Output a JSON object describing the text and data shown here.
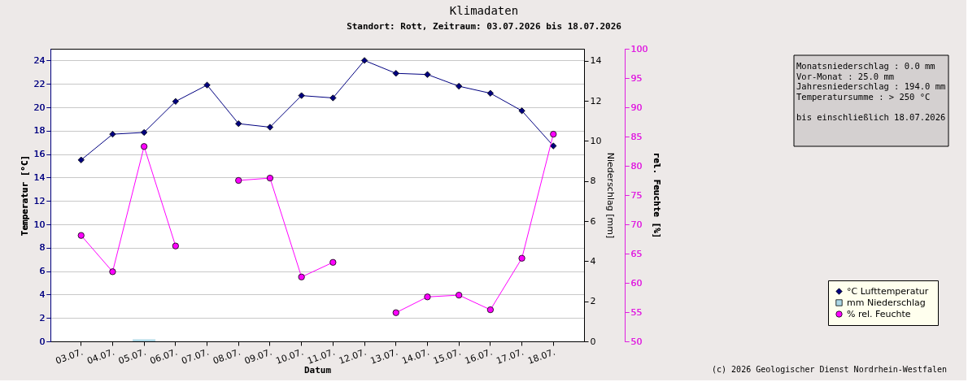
{
  "chart_data": {
    "type": "line",
    "title": "Klimadaten",
    "subtitle": "Standort: Rott, Zeitraum: 03.07.2026 bis 18.07.2026",
    "xlabel": "Datum",
    "ylabel": "Temperatur [°C]",
    "y2label": "Niederschlag [mm]",
    "y3label": "rel. Feuchte [%]",
    "categories": [
      "03.07.",
      "04.07.",
      "05.07.",
      "06.07.",
      "07.07.",
      "08.07.",
      "09.07.",
      "10.07.",
      "11.07.",
      "12.07.",
      "13.07.",
      "14.07.",
      "15.07.",
      "16.07.",
      "17.07.",
      "18.07."
    ],
    "series": [
      {
        "name": "°C  Lufttemperatur",
        "color": "#000080",
        "marker": "diamond",
        "values": [
          15.5,
          17.7,
          17.85,
          20.5,
          21.9,
          18.6,
          18.3,
          21.0,
          20.8,
          24.0,
          22.9,
          22.8,
          21.8,
          21.2,
          19.7,
          16.7
        ]
      },
      {
        "name": "mm  Niederschlag",
        "type": "bar",
        "axis": "y2",
        "color": "#add8e6",
        "marker": "square",
        "values": [
          0,
          0,
          0.1,
          0,
          0,
          0,
          0,
          0,
          0,
          0,
          0,
          0,
          0,
          0,
          0,
          0
        ]
      },
      {
        "name": "%  rel. Feuchte",
        "axis": "y3",
        "color": "#ff00ff",
        "marker": "circle",
        "values": [
          68.1,
          61.9,
          83.3,
          66.3,
          null,
          77.5,
          77.9,
          61.0,
          63.5,
          null,
          54.9,
          57.6,
          57.9,
          55.4,
          64.2,
          85.4
        ]
      }
    ],
    "ylim": [
      0,
      25
    ],
    "yticks": [
      0,
      2,
      4,
      6,
      8,
      10,
      12,
      14,
      16,
      18,
      20,
      22,
      24
    ],
    "y2lim": [
      0,
      14.6
    ],
    "y2ticks": [
      0,
      2,
      4,
      6,
      8,
      10,
      12,
      14
    ],
    "y3lim": [
      50,
      100
    ],
    "y3ticks": [
      50,
      55,
      60,
      65,
      70,
      75,
      80,
      85,
      90,
      95,
      100
    ],
    "grid": "y",
    "legend": "bottom right",
    "annotations": [
      "Monatsniederschlag :    0.0 mm",
      "Vor-Monat          :   25.0 mm",
      "Jahresniederschlag :  194.0 mm",
      "Temperatursumme    :  > 250 °C",
      "bis einschließlich 18.07.2026",
      "(c) 2026 Geologischer Dienst Nordrhein-Westfalen"
    ]
  }
}
